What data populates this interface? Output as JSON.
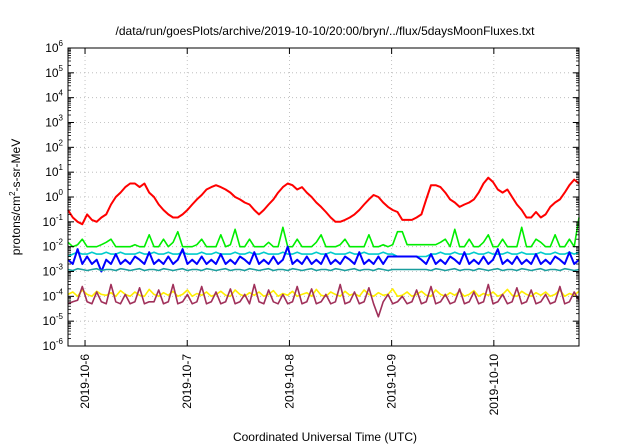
{
  "chart_data": {
    "type": "line",
    "title": "/data/run/goesPlots/archive/2019-10-10/20:00/bryn/../flux/5daysMoonFluxes.txt",
    "xlabel": "Coordinated Universal Time (UTC)",
    "ylabel": {
      "base": "protons/cm",
      "sup": "2",
      "rest": "-s-sr-MeV"
    },
    "yscale": "log",
    "ylim": [
      1e-06,
      1000000.0
    ],
    "y_ticks": [
      {
        "base": "10",
        "exp": "-6",
        "value": 1e-06
      },
      {
        "base": "10",
        "exp": "-5",
        "value": 1e-05
      },
      {
        "base": "10",
        "exp": "-4",
        "value": 0.0001
      },
      {
        "base": "10",
        "exp": "-3",
        "value": 0.001
      },
      {
        "base": "10",
        "exp": "-2",
        "value": 0.01
      },
      {
        "base": "10",
        "exp": "-1",
        "value": 0.1
      },
      {
        "base": "10",
        "exp": "0",
        "value": 1
      },
      {
        "base": "10",
        "exp": "1",
        "value": 10
      },
      {
        "base": "10",
        "exp": "2",
        "value": 100
      },
      {
        "base": "10",
        "exp": "3",
        "value": 1000
      },
      {
        "base": "10",
        "exp": "4",
        "value": 10000
      },
      {
        "base": "10",
        "exp": "5",
        "value": 100000
      },
      {
        "base": "10",
        "exp": "6",
        "value": 1000000
      }
    ],
    "xlim": [
      "2019-10-05T20:00",
      "2019-10-10T20:00"
    ],
    "x_ticks": [
      "2019-10-6",
      "2019-10-7",
      "2019-10-8",
      "2019-10-9",
      "2019-10-10"
    ],
    "grid": true,
    "series": [
      {
        "color": "#ff0000",
        "values": [
          0.3,
          0.15,
          0.1,
          0.08,
          0.2,
          0.12,
          0.1,
          0.15,
          0.2,
          0.5,
          1.0,
          1.5,
          2.5,
          3.5,
          3.5,
          2.5,
          3.5,
          1.5,
          1.0,
          0.5,
          0.3,
          0.2,
          0.15,
          0.15,
          0.2,
          0.3,
          0.5,
          0.8,
          1.2,
          2.0,
          2.5,
          3.0,
          2.5,
          2.0,
          1.5,
          1.0,
          0.8,
          0.6,
          0.5,
          0.3,
          0.2,
          0.3,
          0.5,
          0.8,
          1.5,
          2.5,
          3.5,
          3.0,
          2.0,
          2.5,
          1.5,
          1.0,
          0.6,
          0.4,
          0.25,
          0.15,
          0.1,
          0.1,
          0.12,
          0.15,
          0.2,
          0.3,
          0.5,
          0.8,
          1.2,
          1.0,
          0.6,
          0.4,
          0.3,
          0.25,
          0.12,
          0.12,
          0.12,
          0.15,
          0.2,
          0.8,
          3.0,
          3.0,
          2.5,
          1.5,
          0.8,
          0.6,
          0.4,
          0.5,
          0.6,
          0.8,
          1.5,
          3.5,
          6.0,
          4.0,
          2.0,
          1.5,
          2.0,
          1.0,
          0.5,
          0.3,
          0.15,
          0.15,
          0.25,
          0.15,
          0.2,
          0.4,
          0.6,
          0.8,
          1.5,
          3.0,
          5.0,
          3.5
        ]
      },
      {
        "color": "#00ee00",
        "values": [
          0.015,
          0.01,
          0.012,
          0.02,
          0.01,
          0.01,
          0.01,
          0.012,
          0.015,
          0.02,
          0.01,
          0.01,
          0.01,
          0.01,
          0.012,
          0.01,
          0.01,
          0.03,
          0.01,
          0.01,
          0.02,
          0.01,
          0.015,
          0.04,
          0.01,
          0.01,
          0.01,
          0.012,
          0.02,
          0.01,
          0.01,
          0.01,
          0.03,
          0.01,
          0.012,
          0.05,
          0.01,
          0.01,
          0.02,
          0.01,
          0.01,
          0.01,
          0.015,
          0.01,
          0.01,
          0.06,
          0.01,
          0.01,
          0.02,
          0.01,
          0.01,
          0.01,
          0.015,
          0.03,
          0.01,
          0.01,
          0.01,
          0.012,
          0.02,
          0.01,
          0.01,
          0.01,
          0.01,
          0.03,
          0.01,
          0.01,
          0.012,
          0.01,
          0.012,
          0.04,
          0.04,
          0.012,
          0.012,
          0.012,
          0.012,
          0.012,
          0.012,
          0.012,
          0.015,
          0.02,
          0.01,
          0.05,
          0.01,
          0.01,
          0.02,
          0.01,
          0.01,
          0.015,
          0.03,
          0.01,
          0.01,
          0.02,
          0.01,
          0.01,
          0.01,
          0.06,
          0.01,
          0.01,
          0.02,
          0.015,
          0.01,
          0.01,
          0.03,
          0.01,
          0.01,
          0.02,
          0.01,
          0.15
        ]
      },
      {
        "color": "#00cccc",
        "values": [
          0.004,
          0.005,
          0.006,
          0.005,
          0.005,
          0.006,
          0.005,
          0.005,
          0.006,
          0.005,
          0.005,
          0.006,
          0.005,
          0.005,
          0.005,
          0.006,
          0.005,
          0.005,
          0.006,
          0.005,
          0.005,
          0.006,
          0.005,
          0.005,
          0.006,
          0.005,
          0.005,
          0.005,
          0.006,
          0.005,
          0.005,
          0.006,
          0.005,
          0.005,
          0.005,
          0.006,
          0.005,
          0.005,
          0.006,
          0.005,
          0.005,
          0.006,
          0.005,
          0.005,
          0.005,
          0.006,
          0.005,
          0.005,
          0.006,
          0.005,
          0.005,
          0.005,
          0.006,
          0.005,
          0.005,
          0.006,
          0.005,
          0.005,
          0.005,
          0.006,
          0.005,
          0.005,
          0.006,
          0.005,
          0.005,
          0.005,
          0.006,
          0.005,
          0.005,
          0.004,
          0.004,
          0.004,
          0.004,
          0.004,
          0.004,
          0.004,
          0.005,
          0.005,
          0.006,
          0.005,
          0.005,
          0.006,
          0.005,
          0.005,
          0.005,
          0.006,
          0.005,
          0.005,
          0.006,
          0.005,
          0.005,
          0.005,
          0.006,
          0.005,
          0.005,
          0.006,
          0.005,
          0.005,
          0.005,
          0.006,
          0.005,
          0.005,
          0.006,
          0.005,
          0.005,
          0.006,
          0.005,
          0.006
        ]
      },
      {
        "color": "#0000ff",
        "values": [
          0.003,
          0.002,
          0.008,
          0.002,
          0.004,
          0.002,
          0.003,
          0.001,
          0.003,
          0.002,
          0.005,
          0.002,
          0.003,
          0.002,
          0.004,
          0.003,
          0.002,
          0.006,
          0.002,
          0.003,
          0.002,
          0.004,
          0.002,
          0.003,
          0.008,
          0.002,
          0.003,
          0.002,
          0.004,
          0.002,
          0.003,
          0.002,
          0.005,
          0.002,
          0.003,
          0.002,
          0.004,
          0.003,
          0.002,
          0.006,
          0.002,
          0.003,
          0.002,
          0.004,
          0.002,
          0.003,
          0.01,
          0.002,
          0.003,
          0.002,
          0.004,
          0.002,
          0.003,
          0.002,
          0.005,
          0.002,
          0.003,
          0.002,
          0.004,
          0.003,
          0.002,
          0.006,
          0.002,
          0.003,
          0.002,
          0.004,
          0.002,
          0.004,
          0.004,
          0.004,
          0.004,
          0.004,
          0.004,
          0.004,
          0.003,
          0.002,
          0.005,
          0.002,
          0.003,
          0.002,
          0.004,
          0.003,
          0.002,
          0.006,
          0.002,
          0.003,
          0.002,
          0.004,
          0.002,
          0.003,
          0.008,
          0.002,
          0.003,
          0.002,
          0.004,
          0.002,
          0.003,
          0.002,
          0.005,
          0.002,
          0.003,
          0.002,
          0.004,
          0.003,
          0.002,
          0.006,
          0.002,
          0.003
        ]
      },
      {
        "color": "#1a9e9e",
        "values": [
          0.0012,
          0.0011,
          0.0013,
          0.0012,
          0.0011,
          0.0012,
          0.0013,
          0.0011,
          0.0012,
          0.0012,
          0.0011,
          0.0013,
          0.0012,
          0.0011,
          0.0012,
          0.0013,
          0.0011,
          0.0012,
          0.0012,
          0.0011,
          0.0013,
          0.0012,
          0.0011,
          0.0012,
          0.0013,
          0.0011,
          0.0012,
          0.0012,
          0.0011,
          0.0013,
          0.0012,
          0.0011,
          0.0012,
          0.0013,
          0.0011,
          0.0012,
          0.0012,
          0.0011,
          0.0013,
          0.0012,
          0.0011,
          0.0012,
          0.0013,
          0.0011,
          0.0012,
          0.0012,
          0.0011,
          0.0013,
          0.0012,
          0.0011,
          0.0012,
          0.0013,
          0.0011,
          0.0012,
          0.0012,
          0.0011,
          0.0013,
          0.0012,
          0.0011,
          0.0012,
          0.0013,
          0.0011,
          0.0012,
          0.0012,
          0.0011,
          0.0013,
          0.0012,
          0.0011,
          0.0012,
          0.0012,
          0.0012,
          0.0012,
          0.0012,
          0.0012,
          0.0012,
          0.0012,
          0.0011,
          0.0013,
          0.0012,
          0.0011,
          0.0012,
          0.0013,
          0.0011,
          0.0012,
          0.0012,
          0.0011,
          0.0013,
          0.0012,
          0.0011,
          0.0012,
          0.0013,
          0.0011,
          0.0012,
          0.0012,
          0.0011,
          0.0013,
          0.0012,
          0.0011,
          0.0012,
          0.0013,
          0.0011,
          0.0012,
          0.0012,
          0.0011,
          0.0013,
          0.0012,
          0.0011,
          0.0012
        ]
      },
      {
        "color": "#ffee00",
        "values": [
          0.00012,
          0.00015,
          0.0001,
          0.00018,
          0.00012,
          0.0001,
          0.00016,
          0.00012,
          0.00011,
          0.00014,
          0.0001,
          0.00017,
          0.00012,
          0.0001,
          0.00015,
          0.00011,
          0.0001,
          0.00019,
          0.00012,
          0.0001,
          0.00014,
          0.00011,
          0.00016,
          0.0001,
          0.00012,
          0.00018,
          0.0001,
          0.00013,
          0.00011,
          0.00015,
          0.0001,
          0.00012,
          0.00016,
          0.00011,
          0.0001,
          0.00018,
          0.00012,
          0.0001,
          0.00014,
          0.00011,
          0.00015,
          0.0001,
          0.00012,
          0.00017,
          0.0001,
          0.00013,
          0.00011,
          0.00016,
          0.0001,
          0.00012,
          0.00014,
          0.0001,
          0.00019,
          0.00011,
          0.0001,
          0.00015,
          0.00012,
          0.0001,
          0.00016,
          0.00011,
          0.00013,
          0.0001,
          0.00018,
          0.00012,
          0.0001,
          0.00014,
          0.00011,
          0.00012,
          0.0002,
          0.0001,
          0.00011,
          0.00015,
          0.0001,
          0.00012,
          0.00016,
          0.00011,
          0.0001,
          0.00018,
          0.00012,
          0.0001,
          0.00014,
          0.00011,
          0.00016,
          0.0001,
          0.00012,
          0.00017,
          0.0001,
          0.00013,
          0.00011,
          0.00015,
          0.0001,
          0.00012,
          0.00019,
          0.00011,
          0.0001,
          0.00016,
          0.00012,
          0.0001,
          0.00014,
          0.00011,
          0.00015,
          0.0001,
          0.00012,
          0.00018,
          0.0001,
          0.00013,
          0.00011,
          0.00016
        ]
      },
      {
        "color": "#a0305a",
        "values": [
          5e-05,
          6e-05,
          7e-05,
          0.00025,
          6e-05,
          5e-05,
          0.00015,
          6e-05,
          5e-05,
          0.0003,
          6e-05,
          5e-05,
          0.00012,
          5e-05,
          6e-05,
          0.00022,
          5e-05,
          6e-05,
          6e-05,
          0.00018,
          5e-05,
          6e-05,
          0.0003,
          5e-05,
          6e-05,
          0.00012,
          5e-05,
          6e-05,
          0.00025,
          5e-05,
          6e-05,
          0.00015,
          5e-05,
          6e-05,
          0.0002,
          5e-05,
          6e-05,
          0.00012,
          5e-05,
          0.0003,
          6e-05,
          5e-05,
          0.00018,
          6e-05,
          5e-05,
          0.00012,
          5e-05,
          6e-05,
          0.00025,
          5e-05,
          6e-05,
          0.0002,
          5e-05,
          6e-05,
          0.00012,
          5e-05,
          6e-05,
          0.0003,
          5e-05,
          6e-05,
          0.00015,
          5e-05,
          6e-05,
          0.00022,
          5e-05,
          1.5e-05,
          6e-05,
          0.00012,
          5e-05,
          6e-05,
          0.0001,
          5e-05,
          6e-05,
          0.00018,
          5e-05,
          6e-05,
          0.00025,
          5e-05,
          6e-05,
          0.00012,
          5e-05,
          6e-05,
          0.0002,
          5e-05,
          6e-05,
          0.00015,
          5e-05,
          6e-05,
          0.0003,
          5e-05,
          6e-05,
          0.00012,
          5e-05,
          6e-05,
          0.00022,
          5e-05,
          6e-05,
          0.00018,
          5e-05,
          6e-05,
          0.00012,
          5e-05,
          6e-05,
          0.00025,
          5e-05,
          6e-05,
          0.00015,
          7e-05
        ]
      }
    ]
  }
}
